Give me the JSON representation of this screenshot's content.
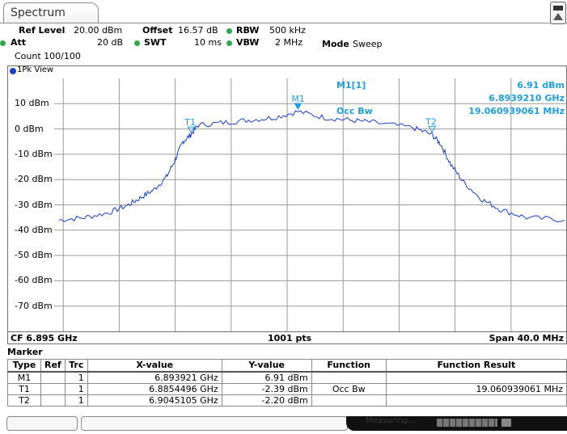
{
  "tab": {
    "title": "Spectrum"
  },
  "settings": {
    "ref_level_label": "Ref Level",
    "ref_level_value": "20.00 dBm",
    "offset_label": "Offset",
    "offset_value": "16.57 dB",
    "rbw_label": "RBW",
    "rbw_value": "500 kHz",
    "att_label": "Att",
    "att_value": "20 dB",
    "swt_label": "SWT",
    "swt_value": "10 ms",
    "vbw_label": "VBW",
    "vbw_value": "2 MHz",
    "mode_label": "Mode",
    "mode_value": "Sweep",
    "count": "Count 100/100",
    "indicator_color": "#2fa84f"
  },
  "view": {
    "label": "1Pk View",
    "dot_color": "#1a3fc8"
  },
  "chart_data": {
    "type": "line",
    "y_ticks": [
      "10 dBm",
      "0 dBm",
      "-10 dBm",
      "-20 dBm",
      "-30 dBm",
      "-40 dBm",
      "-50 dBm",
      "-60 dBm",
      "-70 dBm"
    ],
    "ylim": [
      -80,
      20
    ],
    "xlim": [
      6.875,
      6.915
    ],
    "x_unit": "GHz",
    "grid": true,
    "series": [
      {
        "color": "#1a3fc8",
        "x": [
          6.875,
          6.877,
          6.879,
          6.8805,
          6.8815,
          6.8825,
          6.8835,
          6.8842,
          6.8848,
          6.8854,
          6.886,
          6.888,
          6.89,
          6.892,
          6.8939,
          6.896,
          6.898,
          6.9,
          6.903,
          6.9045,
          6.9052,
          6.906,
          6.907,
          6.9085,
          6.91,
          6.912,
          6.915
        ],
        "y": [
          -36,
          -35,
          -33,
          -30,
          -27,
          -24,
          -19,
          -12,
          -5,
          -2.4,
          1.5,
          2.5,
          3.5,
          4.5,
          6.9,
          4.5,
          3.5,
          2.5,
          0.5,
          -2.2,
          -6,
          -14,
          -21,
          -28,
          -32,
          -35,
          -36
        ]
      }
    ],
    "markers": [
      {
        "name": "M1",
        "x": 6.8939,
        "y": 6.9
      },
      {
        "name": "T1",
        "x": 6.8854496,
        "y": -2.4
      },
      {
        "name": "T2",
        "x": 6.9045105,
        "y": -2.2
      }
    ]
  },
  "marker_info": {
    "title": "M1[1]",
    "value1": "6.91 dBm",
    "value2": "6.8939210 GHz",
    "occ_label": "Occ Bw",
    "occ_value": "19.060939061 MHz"
  },
  "footer": {
    "cf": "CF 6.895 GHz",
    "pts": "1001 pts",
    "span": "Span 40.0 MHz"
  },
  "marker_table": {
    "title": "Marker",
    "headers": [
      "Type",
      "Ref",
      "Trc",
      "X-value",
      "Y-value",
      "Function",
      "Function Result"
    ],
    "rows": [
      {
        "type": "M1",
        "ref": "",
        "trc": "1",
        "x": "6.893921 GHz",
        "y": "6.91 dBm",
        "func": "",
        "result": ""
      },
      {
        "type": "T1",
        "ref": "",
        "trc": "1",
        "x": "6.8854496 GHz",
        "y": "-2.39 dBm",
        "func": "Occ Bw",
        "result": "19.060939061 MHz"
      },
      {
        "type": "T2",
        "ref": "",
        "trc": "1",
        "x": "6.9045105 GHz",
        "y": "-2.20 dBm",
        "func": "",
        "result": ""
      }
    ]
  },
  "status": {
    "measuring": "Measuring..."
  }
}
